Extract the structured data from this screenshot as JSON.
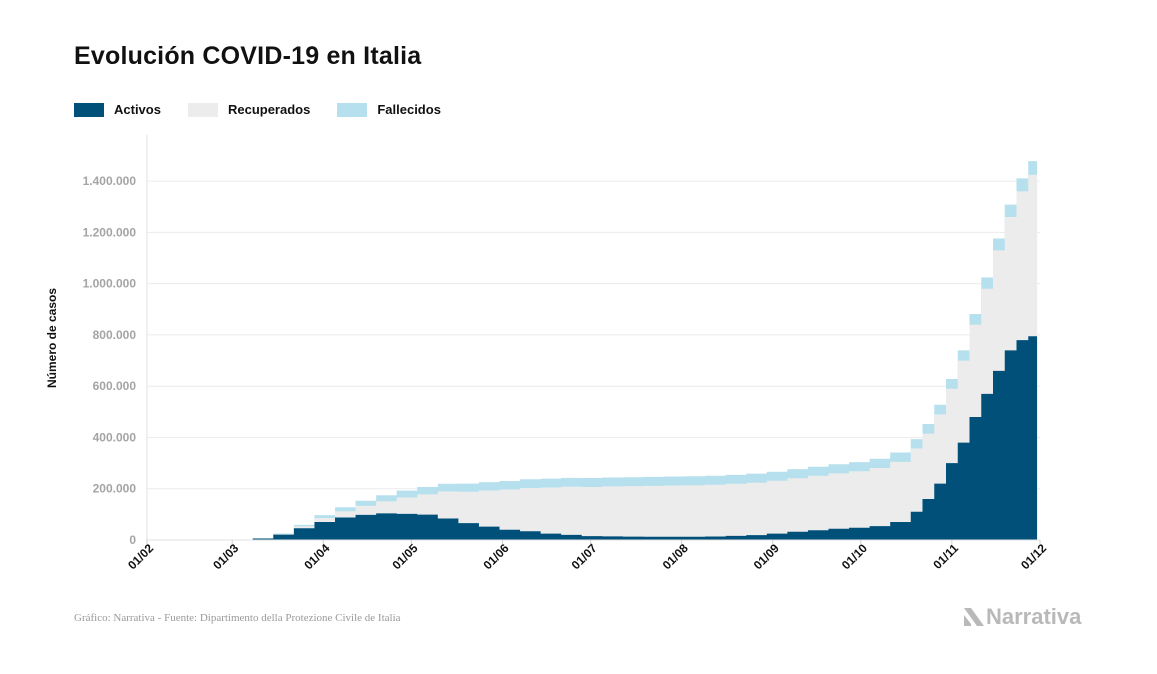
{
  "chart_data": {
    "type": "area",
    "stacked": true,
    "title": "Evolución COVID-19 en Italia",
    "ylabel": "Número de casos",
    "xlabel": "",
    "x_ticks": [
      "01/02",
      "01/03",
      "01/04",
      "01/05",
      "01/06",
      "01/07",
      "01/08",
      "01/09",
      "01/10",
      "01/11",
      "01/12"
    ],
    "ylim": [
      0,
      1500000
    ],
    "y_ticks": [
      0,
      200000,
      400000,
      600000,
      800000,
      1000000,
      1200000,
      1400000
    ],
    "y_tick_labels": [
      "0",
      "200.000",
      "400.000",
      "600.000",
      "800.000",
      "1.000.000",
      "1.200.000",
      "1.400.000"
    ],
    "grid": true,
    "legend_position": "top-left",
    "x": [
      "2020-02-24",
      "2020-03-01",
      "2020-03-08",
      "2020-03-15",
      "2020-03-22",
      "2020-03-29",
      "2020-04-05",
      "2020-04-12",
      "2020-04-19",
      "2020-04-26",
      "2020-05-03",
      "2020-05-10",
      "2020-05-17",
      "2020-05-24",
      "2020-05-31",
      "2020-06-07",
      "2020-06-14",
      "2020-06-21",
      "2020-06-28",
      "2020-07-05",
      "2020-07-12",
      "2020-07-19",
      "2020-07-26",
      "2020-08-02",
      "2020-08-09",
      "2020-08-16",
      "2020-08-23",
      "2020-08-30",
      "2020-09-06",
      "2020-09-13",
      "2020-09-20",
      "2020-09-27",
      "2020-10-04",
      "2020-10-11",
      "2020-10-18",
      "2020-10-22",
      "2020-10-26",
      "2020-10-30",
      "2020-11-03",
      "2020-11-07",
      "2020-11-11",
      "2020-11-15",
      "2020-11-19",
      "2020-11-23",
      "2020-11-27",
      "2020-11-30"
    ],
    "series": [
      {
        "name": "Activos",
        "color": "#00507a",
        "values": [
          200,
          1500,
          6000,
          21000,
          46000,
          70000,
          88000,
          98000,
          104000,
          102000,
          99000,
          84000,
          66000,
          52000,
          40000,
          34000,
          25000,
          20000,
          15000,
          14000,
          13000,
          12500,
          12500,
          12500,
          13500,
          16000,
          19000,
          25000,
          32000,
          38000,
          44000,
          48000,
          54000,
          70000,
          110000,
          160000,
          220000,
          300000,
          380000,
          480000,
          570000,
          660000,
          740000,
          780000,
          795000,
          790000
        ]
      },
      {
        "name": "Recuperados",
        "color": "#ececec",
        "values": [
          50,
          100,
          600,
          2500,
          7500,
          16000,
          24000,
          35000,
          47000,
          64000,
          79000,
          105000,
          122000,
          141000,
          157000,
          169000,
          180000,
          188000,
          192000,
          195000,
          197000,
          198500,
          200000,
          201000,
          202000,
          203000,
          204500,
          206000,
          209000,
          212000,
          216000,
          220000,
          227000,
          235000,
          247000,
          255000,
          270000,
          290000,
          320000,
          360000,
          410000,
          470000,
          520000,
          580000,
          630000,
          680000
        ]
      },
      {
        "name": "Fallecidos",
        "color": "#b7e0ee",
        "values": [
          7,
          30,
          300,
          2000,
          5500,
          10800,
          15900,
          19900,
          23700,
          26600,
          28800,
          30500,
          32000,
          32700,
          33300,
          33900,
          34300,
          34600,
          34700,
          34900,
          34950,
          35050,
          35100,
          35150,
          35200,
          35250,
          35400,
          35500,
          35550,
          35650,
          35750,
          35900,
          36000,
          36300,
          36700,
          37300,
          37700,
          38300,
          39800,
          41800,
          43900,
          46000,
          48500,
          51000,
          53000,
          55000
        ]
      }
    ]
  },
  "legend": {
    "items": [
      {
        "label": "Activos",
        "color": "#00507a"
      },
      {
        "label": "Recuperados",
        "color": "#ececec"
      },
      {
        "label": "Fallecidos",
        "color": "#b7e0ee"
      }
    ]
  },
  "footer": {
    "source": "Gráfico: Narrativa - Fuente: Dipartimento della Protezione Civile de Italia",
    "logo_text": "Narrativa"
  }
}
